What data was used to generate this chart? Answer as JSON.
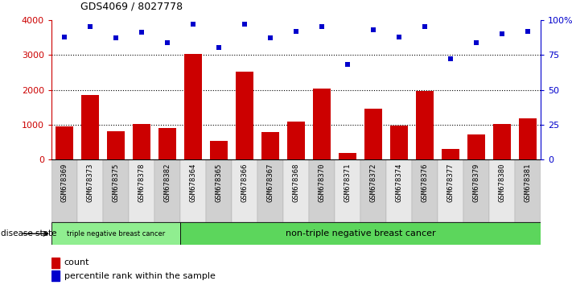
{
  "title": "GDS4069 / 8027778",
  "samples": [
    "GSM678369",
    "GSM678373",
    "GSM678375",
    "GSM678378",
    "GSM678382",
    "GSM678364",
    "GSM678365",
    "GSM678366",
    "GSM678367",
    "GSM678368",
    "GSM678370",
    "GSM678371",
    "GSM678372",
    "GSM678374",
    "GSM678376",
    "GSM678377",
    "GSM678379",
    "GSM678380",
    "GSM678381"
  ],
  "counts": [
    950,
    1850,
    820,
    1020,
    900,
    3020,
    530,
    2520,
    790,
    1100,
    2030,
    180,
    1450,
    970,
    1970,
    310,
    720,
    1020,
    1180
  ],
  "percentile_ranks": [
    88,
    95,
    87,
    91,
    84,
    97,
    80,
    97,
    87,
    92,
    95,
    68,
    93,
    88,
    95,
    72,
    84,
    90,
    92
  ],
  "triple_neg_count": 5,
  "bar_color": "#cc0000",
  "dot_color": "#0000cc",
  "triple_neg_color": "#90ee90",
  "non_triple_neg_color": "#5cd65c",
  "triple_neg_label": "triple negative breast cancer",
  "non_triple_neg_label": "non-triple negative breast cancer",
  "disease_state_label": "disease state",
  "legend_count": "count",
  "legend_pct": "percentile rank within the sample",
  "ylim_left": [
    0,
    4000
  ],
  "ylim_right": [
    0,
    100
  ],
  "yticks_left": [
    0,
    1000,
    2000,
    3000,
    4000
  ],
  "yticks_right": [
    0,
    25,
    50,
    75,
    100
  ],
  "tick_label_color_left": "#cc0000",
  "tick_label_color_right": "#0000cc",
  "cell_color_even": "#d0d0d0",
  "cell_color_odd": "#e8e8e8"
}
